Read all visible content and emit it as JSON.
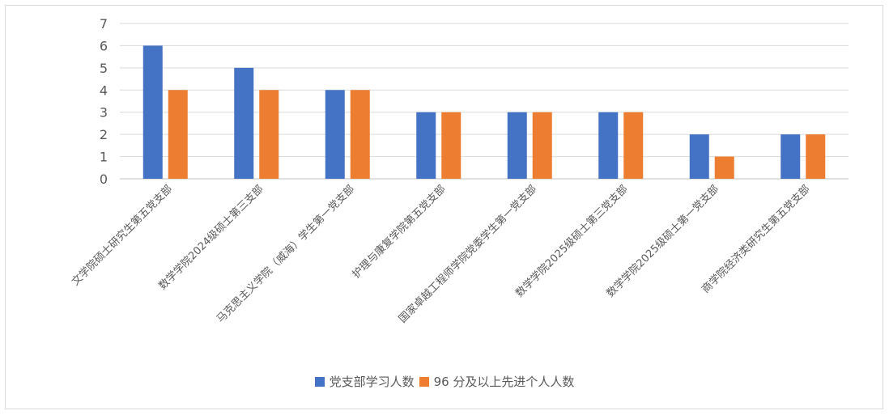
{
  "chart_data": {
    "type": "bar",
    "categories": [
      "文学院硕士研究生第五党支部",
      "数学学院2024级硕士第三支部",
      "马克思主义学院（威海）学生第一党支部",
      "护理与康复学院第五党支部",
      "国家卓越工程师学院党委学生第一党支部",
      "数学学院2025级硕士第三党支部",
      "数学学院2025级硕士第一党支部",
      "商学院经济类研究生第五党支部"
    ],
    "series": [
      {
        "name": "党支部学习人数",
        "color": "#4472c4",
        "values": [
          6,
          5,
          4,
          3,
          3,
          3,
          2,
          2
        ]
      },
      {
        "name": "96 分及以上先进个人人数",
        "color": "#ed7d31",
        "values": [
          4,
          4,
          4,
          3,
          3,
          3,
          1,
          2
        ]
      }
    ],
    "yticks": [
      0,
      1,
      2,
      3,
      4,
      5,
      6,
      7
    ],
    "ylim": [
      0,
      7
    ],
    "grid": true,
    "legend_position": "bottom"
  }
}
